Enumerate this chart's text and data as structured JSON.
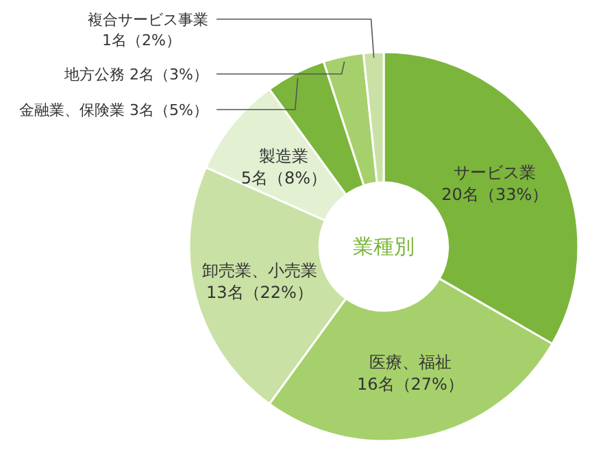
{
  "chart_data": {
    "type": "donut",
    "title": "業種別",
    "categories": [
      "サービス業",
      "医療、福祉",
      "卸売業、小売業",
      "製造業",
      "金融業、保険業",
      "地方公務",
      "複合サービス事業"
    ],
    "values": [
      20,
      16,
      13,
      5,
      3,
      2,
      1
    ],
    "value_labels": [
      "20名（33%）",
      "16名（27%）",
      "13名（22%）",
      "5名（8%）",
      "3名（5%）",
      "2名（3%）",
      "1名（2%）"
    ],
    "colors": [
      "#7bb53b",
      "#a6d06b",
      "#c9e1a4",
      "#e3f0d2",
      "#7bb53b",
      "#a6d06b",
      "#c9e1a4"
    ]
  }
}
